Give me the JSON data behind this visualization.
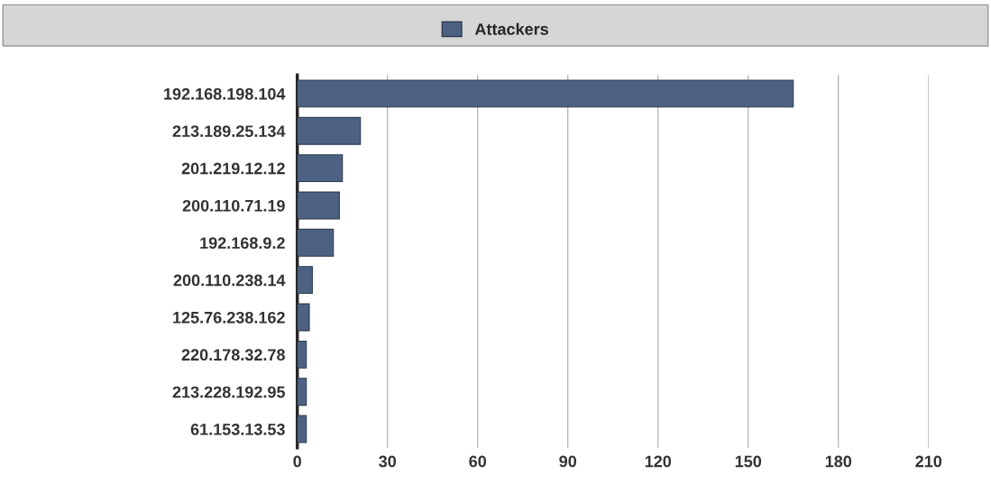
{
  "chart_data": {
    "type": "bar",
    "orientation": "horizontal",
    "categories": [
      "192.168.198.104",
      "213.189.25.134",
      "201.219.12.12",
      "200.110.71.19",
      "192.168.9.2",
      "200.110.238.14",
      "125.76.238.162",
      "220.178.32.78",
      "213.228.192.95",
      "61.153.13.53"
    ],
    "series": [
      {
        "name": "Attackers",
        "color": "#4d6282",
        "values": [
          165,
          21,
          15,
          14,
          12,
          5,
          4,
          3,
          3,
          3
        ]
      }
    ],
    "xlim": [
      0,
      210
    ],
    "xticks": [
      0,
      30,
      60,
      90,
      120,
      150,
      180,
      210
    ],
    "grid": "x",
    "legend": "top"
  }
}
